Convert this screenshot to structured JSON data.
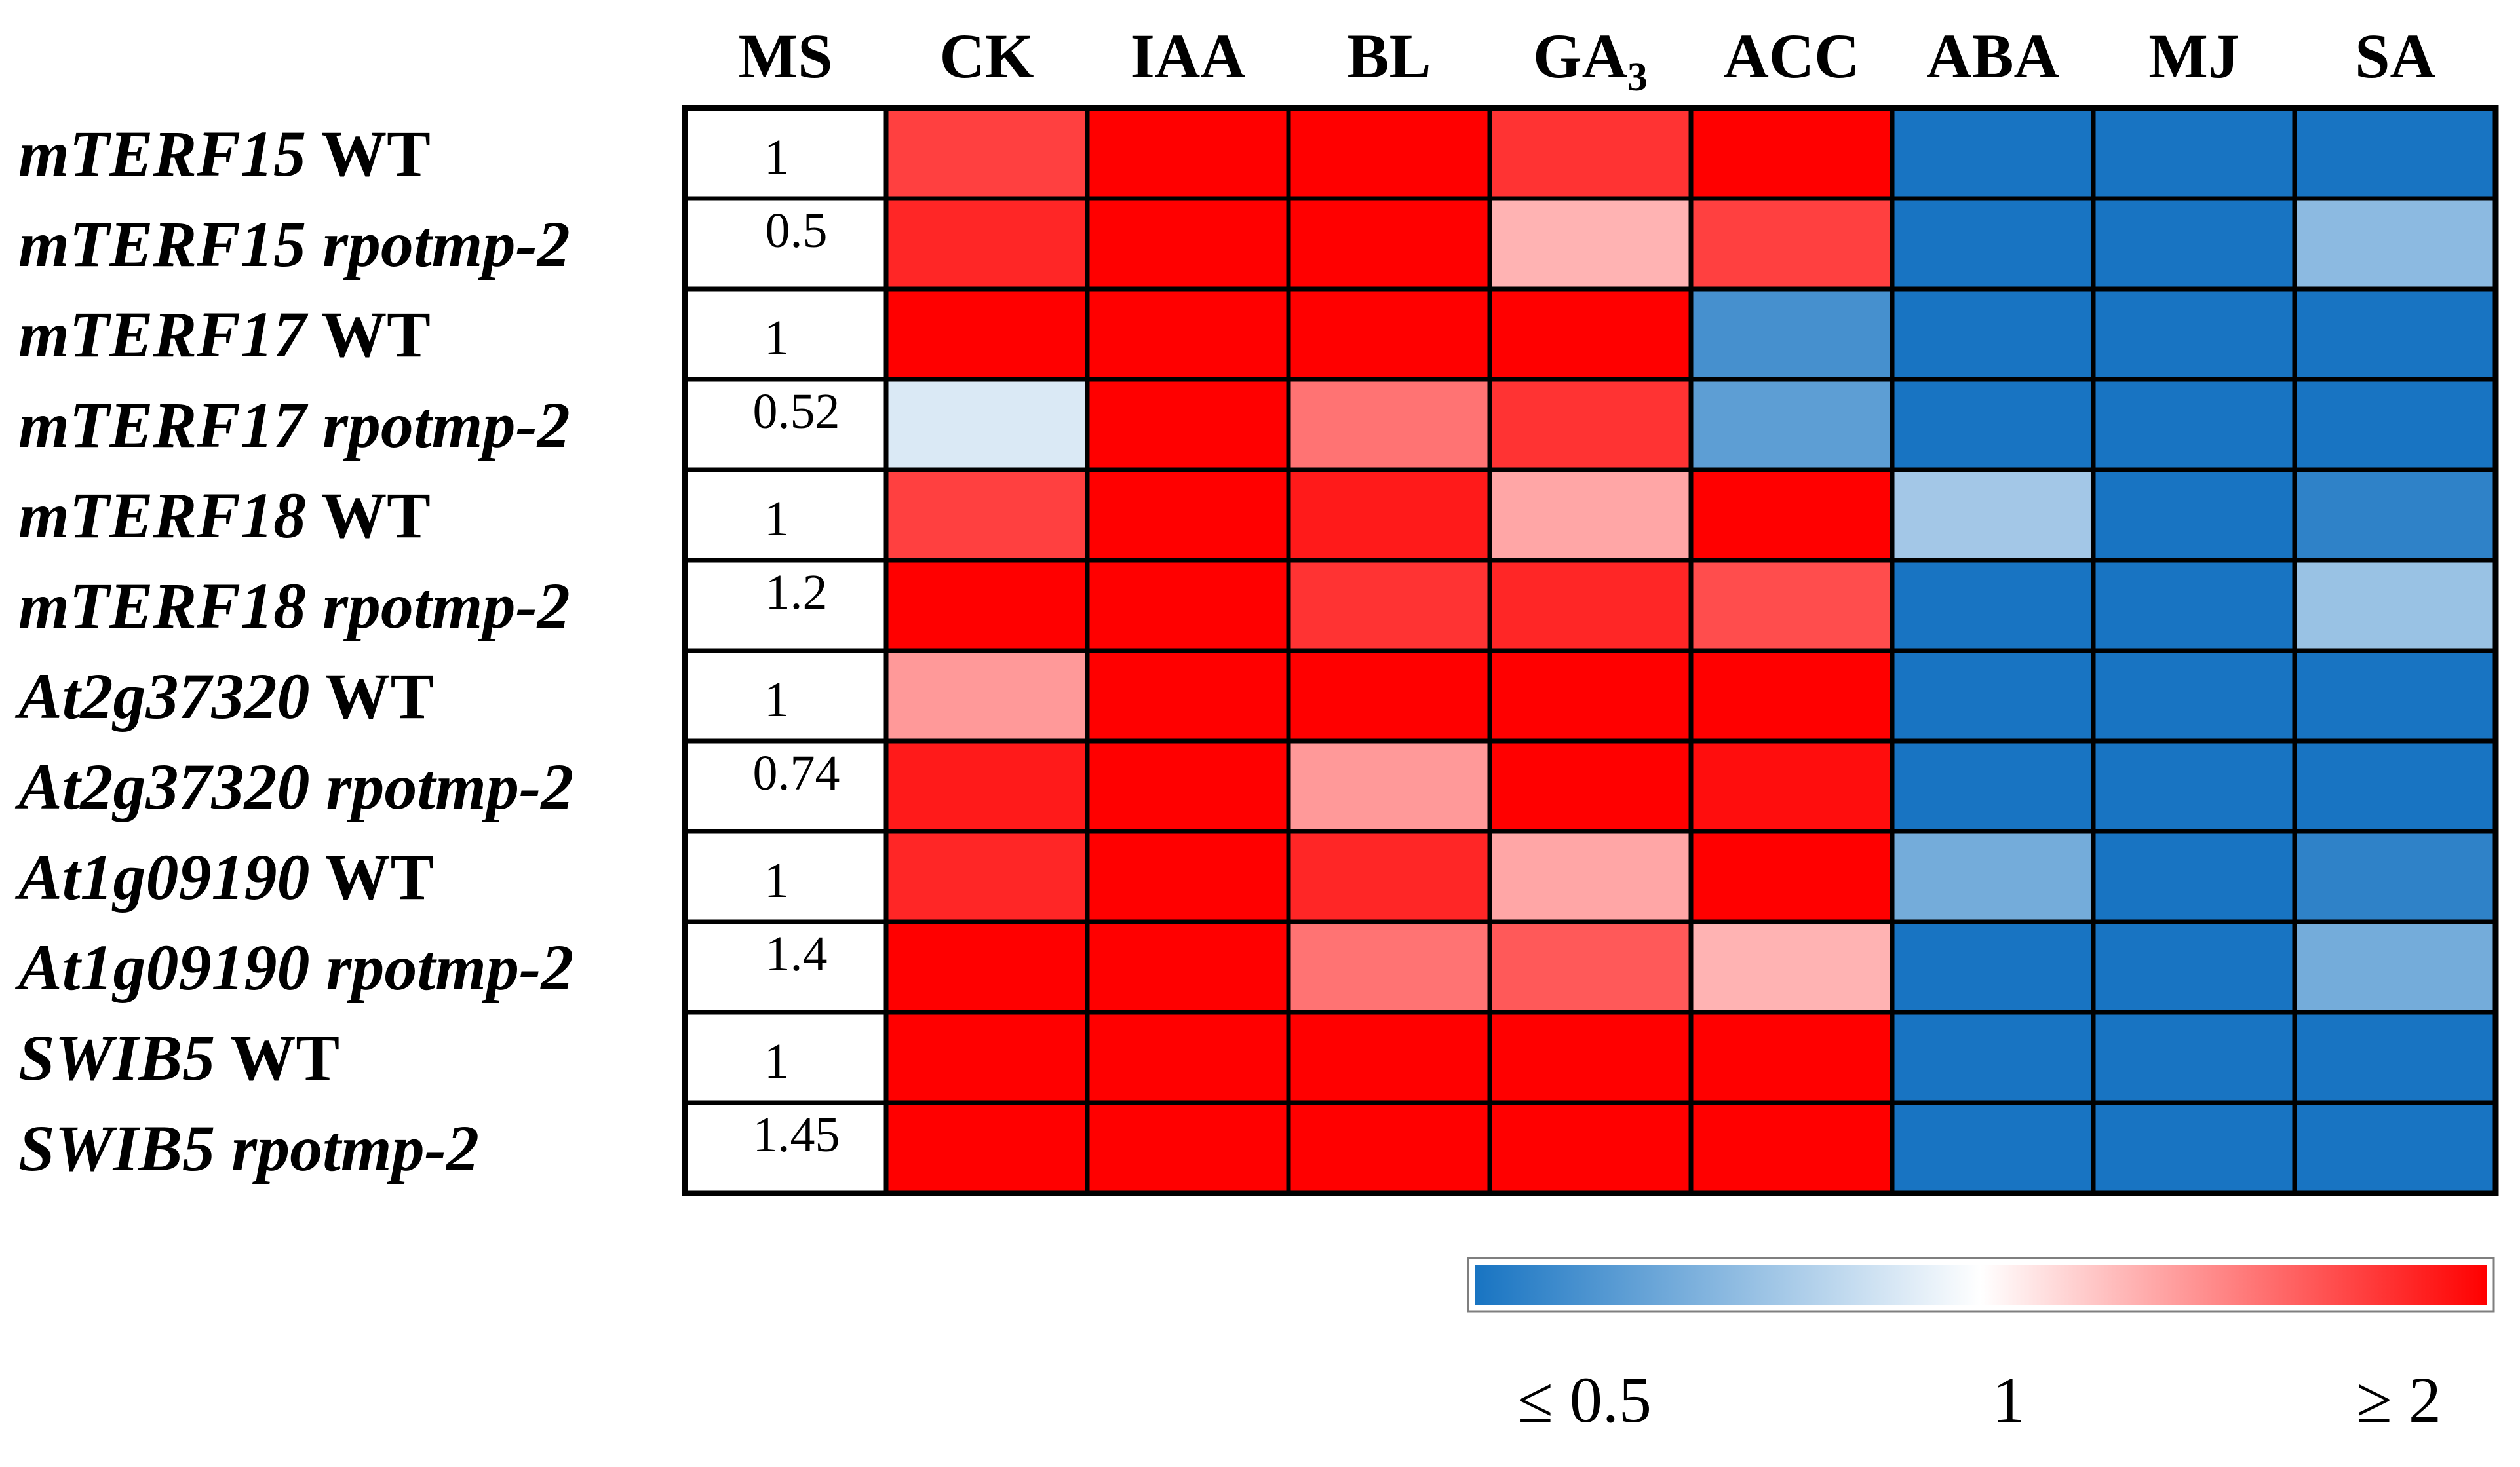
{
  "chart_data": {
    "type": "heatmap",
    "columns": [
      "MS",
      "CK",
      "IAA",
      "BL",
      "GA",
      "ACC",
      "ABA",
      "MJ",
      "SA"
    ],
    "column_subscripts": {
      "GA": "3"
    },
    "rows": [
      {
        "gene": "mTERF15",
        "genotype": "WT"
      },
      {
        "gene": "mTERF15",
        "genotype": "rpotmp-2"
      },
      {
        "gene": "mTERF17",
        "genotype": "WT"
      },
      {
        "gene": "mTERF17",
        "genotype": "rpotmp-2"
      },
      {
        "gene": "mTERF18",
        "genotype": "WT"
      },
      {
        "gene": "mTERF18",
        "genotype": "rpotmp-2"
      },
      {
        "gene": "At2g37320",
        "genotype": "WT"
      },
      {
        "gene": "At2g37320",
        "genotype": "rpotmp-2"
      },
      {
        "gene": "At1g09190",
        "genotype": "WT"
      },
      {
        "gene": "At1g09190",
        "genotype": "rpotmp-2"
      },
      {
        "gene": "SWIB5",
        "genotype": "WT"
      },
      {
        "gene": "SWIB5",
        "genotype": "rpotmp-2"
      }
    ],
    "ms_values": [
      "1",
      "0.5",
      "1",
      "0.52",
      "1",
      "1.2",
      "1",
      "0.74",
      "1",
      "1.4",
      "1",
      "1.45"
    ],
    "values": [
      [
        1.75,
        2.0,
        2.0,
        1.8,
        2.0,
        0.35,
        0.3,
        0.3
      ],
      [
        1.85,
        2.0,
        2.0,
        1.3,
        1.75,
        0.3,
        0.3,
        0.75
      ],
      [
        2.0,
        2.0,
        2.0,
        2.0,
        0.6,
        0.3,
        0.3,
        0.3
      ],
      [
        0.92,
        2.0,
        1.55,
        1.8,
        0.65,
        0.45,
        0.3,
        0.45
      ],
      [
        1.75,
        2.0,
        1.9,
        1.35,
        2.0,
        0.8,
        0.3,
        0.55
      ],
      [
        2.0,
        2.0,
        1.8,
        1.85,
        1.7,
        0.3,
        0.3,
        0.78
      ],
      [
        1.4,
        2.0,
        2.0,
        2.0,
        2.0,
        0.3,
        0.3,
        0.45
      ],
      [
        1.9,
        2.0,
        1.4,
        2.0,
        1.95,
        0.3,
        0.3,
        0.5
      ],
      [
        1.85,
        2.0,
        1.85,
        1.35,
        2.0,
        0.7,
        0.3,
        0.55
      ],
      [
        2.0,
        2.0,
        1.55,
        1.65,
        1.3,
        0.3,
        0.3,
        0.7
      ],
      [
        2.0,
        2.0,
        2.0,
        2.0,
        2.0,
        0.45,
        0.3,
        0.3
      ],
      [
        2.0,
        2.0,
        2.0,
        2.0,
        2.0,
        0.45,
        0.3,
        0.45
      ]
    ],
    "color_scale": {
      "min": 0.5,
      "mid": 1,
      "max": 2,
      "min_color": "#1874c2",
      "mid_color": "#ffffff",
      "max_color": "#ff0000",
      "tick_labels": [
        "≤ 0.5",
        "1",
        "≥ 2"
      ]
    },
    "legend": "bottom-right"
  }
}
